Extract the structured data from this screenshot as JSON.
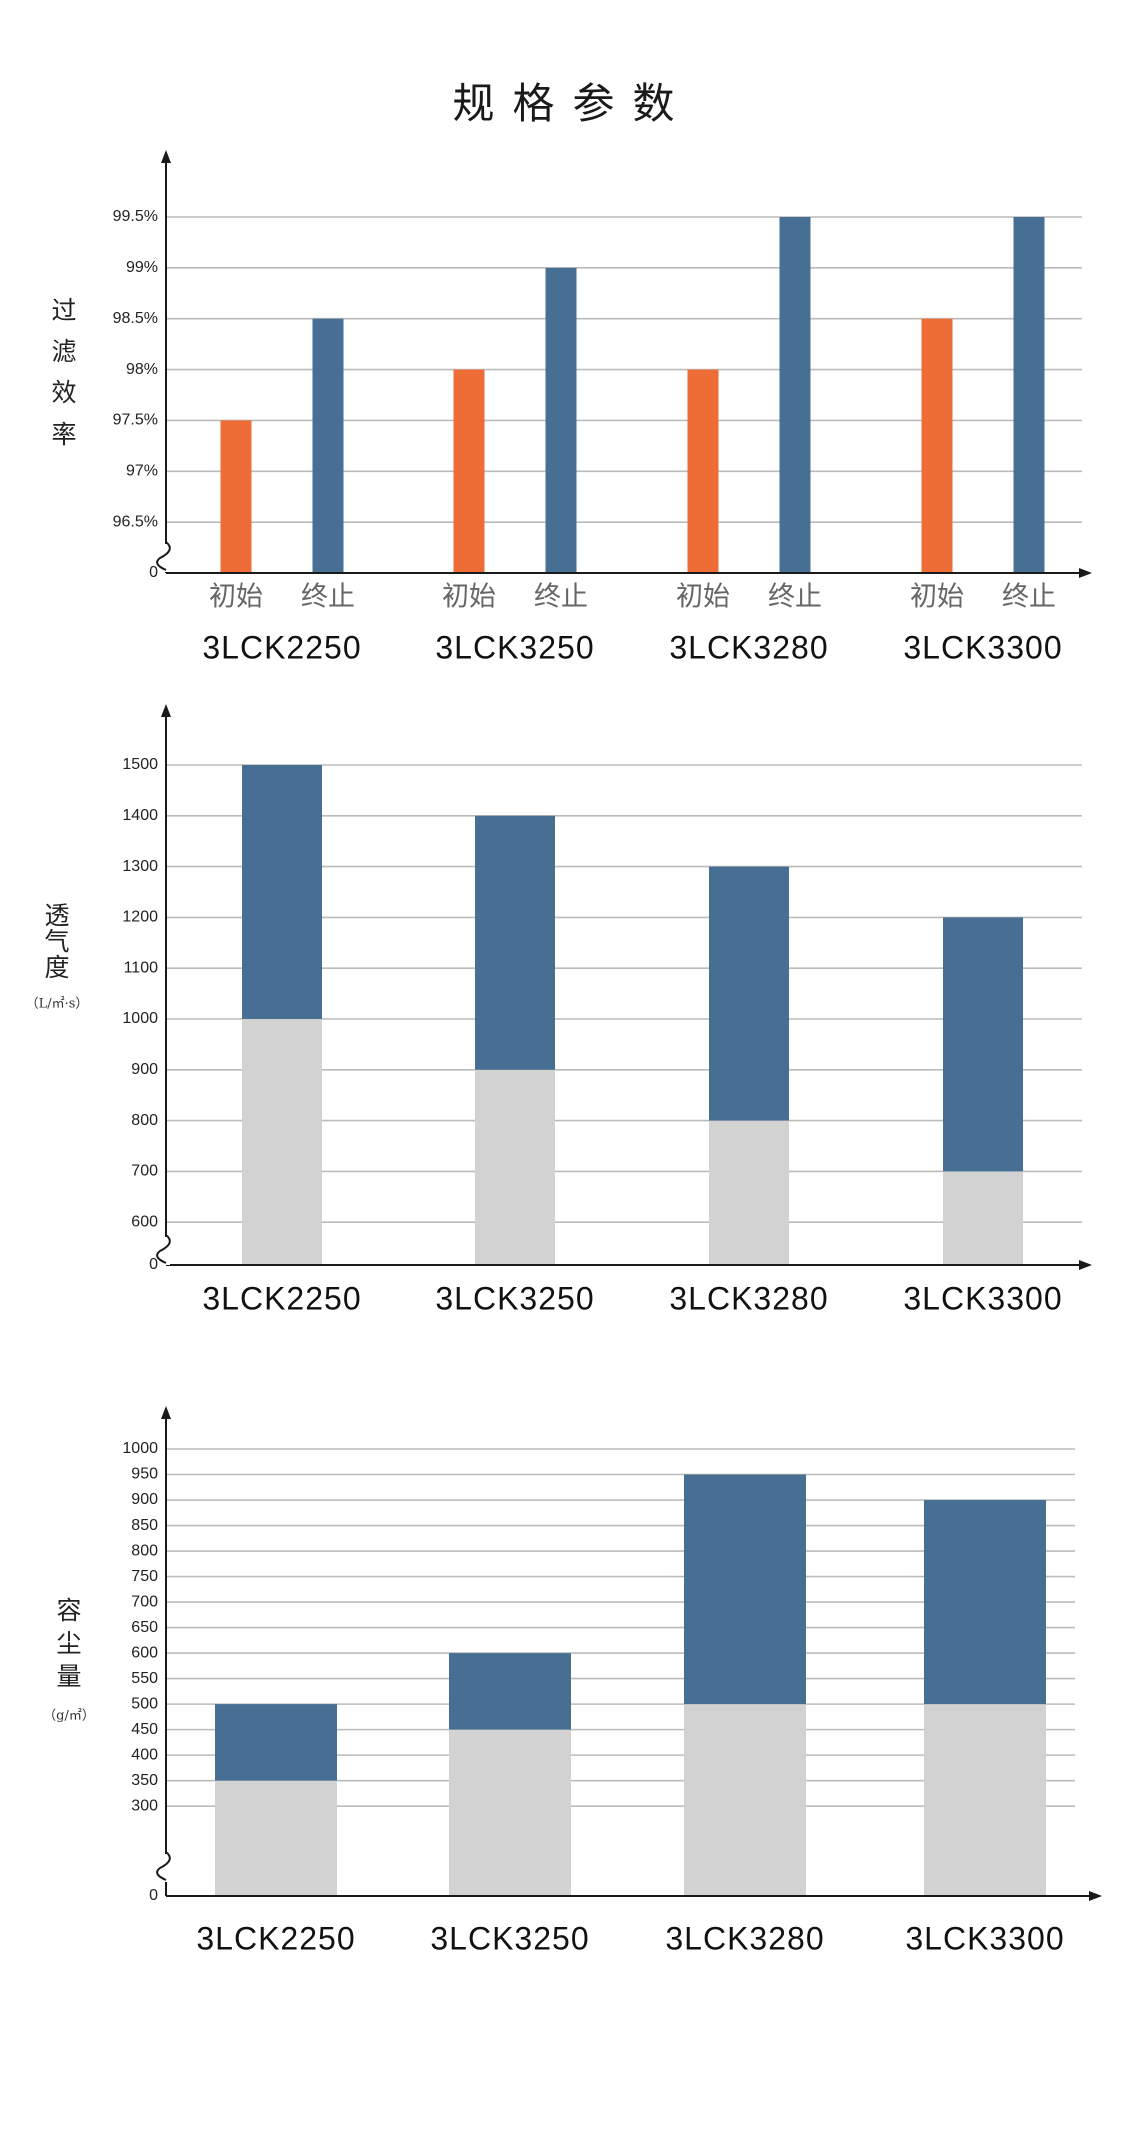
{
  "title": "规格参数",
  "colors": {
    "orange": "#EE6D36",
    "blue": "#466F93",
    "gray": "#D3D2D3",
    "grid": "#BBBBBB",
    "axis": "#1a1a1a"
  },
  "chart_data": [
    {
      "type": "bar",
      "title": "",
      "ylabel": "过滤效率",
      "ylabel_chars": [
        "过",
        "滤",
        "效",
        "率"
      ],
      "categories": [
        "3LCK2250",
        "3LCK3250",
        "3LCK3280",
        "3LCK3300"
      ],
      "series": [
        {
          "name": "初始",
          "values": [
            97.5,
            98,
            98,
            98.5
          ]
        },
        {
          "name": "终止",
          "values": [
            98.5,
            99,
            99.5,
            99.5
          ]
        }
      ],
      "yticks": [
        "0",
        "96.5%",
        "97%",
        "97.5%",
        "98%",
        "98.5%",
        "99%",
        "99.5%"
      ],
      "ylim": [
        96,
        99.5
      ],
      "axis_break": true,
      "grid": true
    },
    {
      "type": "bar",
      "stacked": true,
      "title": "",
      "ylabel": "透气度",
      "ylabel_chars": [
        "透",
        "气",
        "度"
      ],
      "yunit": "（L/㎡·s）",
      "categories": [
        "3LCK2250",
        "3LCK3250",
        "3LCK3280",
        "3LCK3300"
      ],
      "series": [
        {
          "values": [
            1000,
            900,
            800,
            700
          ]
        },
        {
          "values": [
            1500,
            1400,
            1300,
            1200
          ]
        }
      ],
      "yticks": [
        "0",
        "600",
        "700",
        "800",
        "900",
        "1000",
        "1100",
        "1200",
        "1300",
        "1400",
        "1500"
      ],
      "ylim": [
        500,
        1500
      ],
      "axis_break": true,
      "grid": true
    },
    {
      "type": "bar",
      "stacked": true,
      "title": "",
      "ylabel": "容尘量",
      "ylabel_chars": [
        "容",
        "尘",
        "量"
      ],
      "yunit": "（g/㎡）",
      "categories": [
        "3LCK2250",
        "3LCK3250",
        "3LCK3280",
        "3LCK3300"
      ],
      "series": [
        {
          "values": [
            350,
            450,
            500,
            500
          ]
        },
        {
          "values": [
            500,
            600,
            950,
            900
          ]
        }
      ],
      "yticks": [
        "0",
        "300",
        "350",
        "400",
        "450",
        "500",
        "550",
        "600",
        "650",
        "700",
        "750",
        "800",
        "850",
        "900",
        "950",
        "1000"
      ],
      "ylim": [
        120,
        1000
      ],
      "axis_break": true,
      "grid": true
    }
  ]
}
